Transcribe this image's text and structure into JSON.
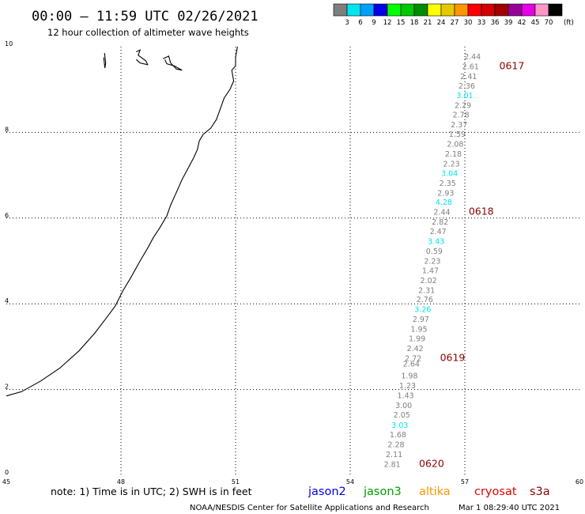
{
  "header": {
    "title": "00:00 – 11:59 UTC 02/26/2021",
    "subtitle": "12 hour collection of altimeter wave heights"
  },
  "legend": {
    "unit": "(ft)",
    "bins": [
      {
        "label": "3",
        "color": "#7f7f7f"
      },
      {
        "label": "6",
        "color": "#00e5ee"
      },
      {
        "label": "9",
        "color": "#00a0ff"
      },
      {
        "label": "12",
        "color": "#0000e6"
      },
      {
        "label": "15",
        "color": "#00ff00"
      },
      {
        "label": "18",
        "color": "#00c800"
      },
      {
        "label": "21",
        "color": "#008c00"
      },
      {
        "label": "24",
        "color": "#ffff00"
      },
      {
        "label": "27",
        "color": "#e6c800"
      },
      {
        "label": "30",
        "color": "#ff9600"
      },
      {
        "label": "33",
        "color": "#ff0000"
      },
      {
        "label": "36",
        "color": "#d20000"
      },
      {
        "label": "39",
        "color": "#a00000"
      },
      {
        "label": "42",
        "color": "#960096"
      },
      {
        "label": "45",
        "color": "#e600e6"
      },
      {
        "label": "70",
        "color": "#ff96c8"
      },
      {
        "label": "",
        "color": "#000000"
      }
    ]
  },
  "map": {
    "lon_range": [
      45,
      60
    ],
    "lat_range": [
      0,
      10
    ],
    "x_ticks": [
      "45",
      "48",
      "51",
      "54",
      "57",
      "60"
    ],
    "y_ticks": [
      "0",
      "2",
      "4",
      "6",
      "8",
      "10"
    ],
    "grid": true,
    "track_color": "#7f7f7f",
    "highlight_color": "#00e5ee",
    "track": [
      {
        "lon": 57.2,
        "lat": 9.78,
        "label": "2.44"
      },
      {
        "lon": 57.15,
        "lat": 9.55,
        "label": "2.61"
      },
      {
        "lon": 57.1,
        "lat": 9.32,
        "label": "2.41"
      },
      {
        "lon": 57.05,
        "lat": 9.1,
        "label": "2.36"
      },
      {
        "lon": 57.0,
        "lat": 8.87,
        "label": "3.01",
        "hl": true
      },
      {
        "lon": 56.95,
        "lat": 8.64,
        "label": "2.29"
      },
      {
        "lon": 56.9,
        "lat": 8.42,
        "label": "2.78"
      },
      {
        "lon": 56.85,
        "lat": 8.19,
        "label": "2.37"
      },
      {
        "lon": 56.8,
        "lat": 7.97,
        "label": "1.59"
      },
      {
        "lon": 56.75,
        "lat": 7.74,
        "label": "2.08"
      },
      {
        "lon": 56.7,
        "lat": 7.51,
        "label": "2.18"
      },
      {
        "lon": 56.65,
        "lat": 7.28,
        "label": "2.23"
      },
      {
        "lon": 56.6,
        "lat": 7.06,
        "label": "3.04",
        "hl": true
      },
      {
        "lon": 56.55,
        "lat": 6.83,
        "label": "2.35"
      },
      {
        "lon": 56.5,
        "lat": 6.6,
        "label": "2.93"
      },
      {
        "lon": 56.45,
        "lat": 6.38,
        "label": "4.28",
        "hl": true
      },
      {
        "lon": 56.4,
        "lat": 6.15,
        "label": "2.44"
      },
      {
        "lon": 56.35,
        "lat": 5.92,
        "label": "2.82"
      },
      {
        "lon": 56.3,
        "lat": 5.7,
        "label": "2.47"
      },
      {
        "lon": 56.25,
        "lat": 5.47,
        "label": "3.43",
        "hl": true
      },
      {
        "lon": 56.2,
        "lat": 5.24,
        "label": "0.59"
      },
      {
        "lon": 56.15,
        "lat": 5.01,
        "label": "2.23"
      },
      {
        "lon": 56.1,
        "lat": 4.79,
        "label": "1.47"
      },
      {
        "lon": 56.05,
        "lat": 4.56,
        "label": "2.02"
      },
      {
        "lon": 56.0,
        "lat": 4.33,
        "label": "2.31"
      },
      {
        "lon": 55.95,
        "lat": 4.11,
        "label": "2.76"
      },
      {
        "lon": 55.9,
        "lat": 3.88,
        "label": "3.26",
        "hl": true
      },
      {
        "lon": 55.85,
        "lat": 3.65,
        "label": "2.97"
      },
      {
        "lon": 55.8,
        "lat": 3.42,
        "label": "1.95"
      },
      {
        "lon": 55.75,
        "lat": 3.2,
        "label": "1.99"
      },
      {
        "lon": 55.7,
        "lat": 2.97,
        "label": "2.42"
      },
      {
        "lon": 55.65,
        "lat": 2.74,
        "label": "2.72"
      },
      {
        "lon": 55.6,
        "lat": 2.61,
        "label": "2.64"
      },
      {
        "lon": 55.55,
        "lat": 2.33,
        "label": "1.98"
      },
      {
        "lon": 55.5,
        "lat": 2.1,
        "label": "1.23"
      },
      {
        "lon": 55.45,
        "lat": 1.87,
        "label": "1.43"
      },
      {
        "lon": 55.4,
        "lat": 1.64,
        "label": "3.00"
      },
      {
        "lon": 55.35,
        "lat": 1.42,
        "label": "2.05"
      },
      {
        "lon": 55.3,
        "lat": 1.18,
        "label": "3.03",
        "hl": true
      },
      {
        "lon": 55.25,
        "lat": 0.96,
        "label": "1.68"
      },
      {
        "lon": 55.2,
        "lat": 0.73,
        "label": "2.28"
      },
      {
        "lon": 55.15,
        "lat": 0.5,
        "label": "2.11"
      },
      {
        "lon": 55.1,
        "lat": 0.27,
        "label": "2.81"
      }
    ],
    "pass_labels": [
      {
        "lon": 57.9,
        "lat": 9.55,
        "label": "0617"
      },
      {
        "lon": 57.1,
        "lat": 6.15,
        "label": "0618"
      },
      {
        "lon": 56.35,
        "lat": 2.74,
        "label": "0619"
      },
      {
        "lon": 55.8,
        "lat": 0.27,
        "label": "0620"
      }
    ],
    "coastline": [
      [
        45.0,
        1.85
      ],
      [
        45.4,
        1.95
      ],
      [
        45.9,
        2.2
      ],
      [
        46.4,
        2.5
      ],
      [
        46.9,
        2.9
      ],
      [
        47.3,
        3.3
      ],
      [
        47.6,
        3.65
      ],
      [
        47.85,
        3.95
      ],
      [
        48.05,
        4.3
      ],
      [
        48.25,
        4.6
      ],
      [
        48.5,
        5.0
      ],
      [
        48.7,
        5.3
      ],
      [
        48.85,
        5.55
      ],
      [
        49.0,
        5.75
      ],
      [
        49.2,
        6.05
      ],
      [
        49.3,
        6.3
      ],
      [
        49.45,
        6.6
      ],
      [
        49.6,
        6.9
      ],
      [
        49.75,
        7.15
      ],
      [
        49.9,
        7.4
      ],
      [
        50.0,
        7.6
      ],
      [
        50.05,
        7.8
      ],
      [
        50.15,
        7.95
      ],
      [
        50.35,
        8.1
      ],
      [
        50.5,
        8.3
      ],
      [
        50.6,
        8.55
      ],
      [
        50.7,
        8.8
      ],
      [
        50.85,
        9.0
      ],
      [
        50.95,
        9.2
      ],
      [
        50.9,
        9.45
      ],
      [
        51.0,
        9.55
      ],
      [
        51.0,
        9.75
      ],
      [
        51.05,
        10.0
      ]
    ],
    "islands": [
      [
        [
          47.55,
          9.75
        ],
        [
          47.58,
          9.5
        ],
        [
          47.6,
          9.62
        ],
        [
          47.57,
          9.85
        ]
      ],
      [
        [
          48.4,
          9.88
        ],
        [
          48.5,
          9.92
        ],
        [
          48.45,
          9.8
        ],
        [
          48.65,
          9.67
        ],
        [
          48.7,
          9.58
        ],
        [
          48.5,
          9.62
        ],
        [
          48.4,
          9.7
        ]
      ],
      [
        [
          49.1,
          9.72
        ],
        [
          49.25,
          9.78
        ],
        [
          49.3,
          9.62
        ],
        [
          49.45,
          9.48
        ],
        [
          49.6,
          9.45
        ],
        [
          49.4,
          9.55
        ],
        [
          49.2,
          9.6
        ],
        [
          49.15,
          9.7
        ]
      ]
    ]
  },
  "footer": {
    "note": "note:  1) Time is in UTC;  2) SWH is in feet",
    "satellites": [
      {
        "name": "jason2",
        "color": "#0000e6"
      },
      {
        "name": "jason3",
        "color": "#00a000"
      },
      {
        "name": "altika",
        "color": "#ff9600"
      },
      {
        "name": "cryosat",
        "color": "#e00000"
      },
      {
        "name": "s3a",
        "color": "#8b0000"
      }
    ],
    "credit": "NOAA/NESDIS Center for Satellite Applications and Research",
    "timestamp": "Mar  1 08:29:40 UTC 2021"
  }
}
